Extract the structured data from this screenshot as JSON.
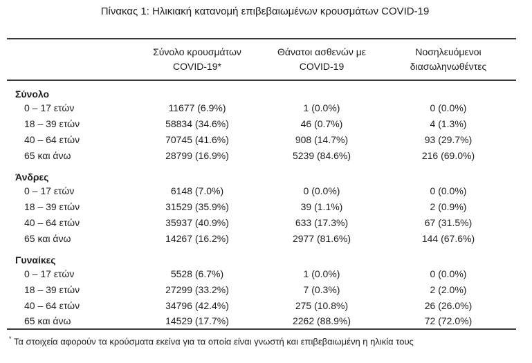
{
  "title": "Πίνακας 1: Ηλικιακή κατανομή επιβεβαιωμένων κρουσμάτων COVID-19",
  "colors": {
    "text": "#1d1d1b",
    "rule": "#3a3a39"
  },
  "table": {
    "columns": [
      {
        "line1": "",
        "line2": ""
      },
      {
        "line1": "Σύνολο κρουσμάτων",
        "line2": "COVID-19*"
      },
      {
        "line1": "Θάνατοι ασθενών με",
        "line2": "COVID-19"
      },
      {
        "line1": "Νοσηλευόμενοι",
        "line2": "διασωληνωθέντες"
      }
    ],
    "sections": [
      {
        "header": "Σύνολο",
        "rows": [
          {
            "label": "0 – 17 ετών",
            "cases": "11677 (6.9%)",
            "deaths": "1 (0.0%)",
            "intubated": "0 (0.0%)"
          },
          {
            "label": "18 – 39 ετών",
            "cases": "58834 (34.6%)",
            "deaths": "46 (0.7%)",
            "intubated": "4 (1.3%)"
          },
          {
            "label": "40 – 64 ετών",
            "cases": "70745 (41.6%)",
            "deaths": "908 (14.7%)",
            "intubated": "93 (29.7%)"
          },
          {
            "label": "65 και άνω",
            "cases": "28799 (16.9%)",
            "deaths": "5239 (84.6%)",
            "intubated": "216 (69.0%)"
          }
        ]
      },
      {
        "header": "Άνδρες",
        "rows": [
          {
            "label": "0 – 17 ετών",
            "cases": "6148 (7.0%)",
            "deaths": "0 (0.0%)",
            "intubated": "0 (0.0%)"
          },
          {
            "label": "18 – 39 ετών",
            "cases": "31529 (35.9%)",
            "deaths": "39 (1.1%)",
            "intubated": "2 (0.9%)"
          },
          {
            "label": "40 – 64 ετών",
            "cases": "35937 (40.9%)",
            "deaths": "633 (17.3%)",
            "intubated": "67 (31.5%)"
          },
          {
            "label": "65 και άνω",
            "cases": "14267 (16.2%)",
            "deaths": "2977 (81.6%)",
            "intubated": "144 (67.6%)"
          }
        ]
      },
      {
        "header": "Γυναίκες",
        "rows": [
          {
            "label": "0 – 17 ετών",
            "cases": "5528 (6.7%)",
            "deaths": "1 (0.0%)",
            "intubated": "0 (0.0%)"
          },
          {
            "label": "18 – 39 ετών",
            "cases": "27299 (33.2%)",
            "deaths": "7 (0.3%)",
            "intubated": "2 (2.0%)"
          },
          {
            "label": "40 – 64 ετών",
            "cases": "34796 (42.4%)",
            "deaths": "275 (10.8%)",
            "intubated": "26 (26.0%)"
          },
          {
            "label": "65 και άνω",
            "cases": "14529 (17.7%)",
            "deaths": "2262 (88.9%)",
            "intubated": "72 (72.0%)"
          }
        ]
      }
    ]
  },
  "footnote": {
    "marker": "*",
    "text": "Τα στοιχεία αφορούν τα κρούσματα εκείνα για τα οποία είναι γνωστή και επιβεβαιωμένη η ηλικία τους"
  }
}
